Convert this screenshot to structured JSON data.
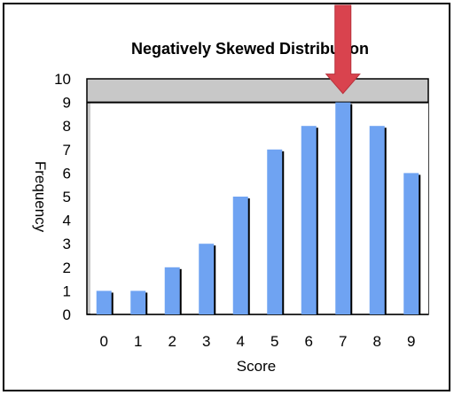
{
  "chart_data": {
    "type": "bar",
    "title": "Negatively Skewed Distribution",
    "xlabel": "Score",
    "ylabel": "Frequency",
    "categories": [
      "0",
      "1",
      "2",
      "3",
      "4",
      "5",
      "6",
      "7",
      "8",
      "9"
    ],
    "series": [
      {
        "values": [
          1,
          1,
          2,
          3,
          5,
          7,
          8,
          9,
          8,
          6
        ]
      }
    ],
    "ylim": [
      0,
      10
    ],
    "yticks": [
      0,
      1,
      2,
      3,
      4,
      5,
      6,
      7,
      8,
      9,
      10
    ],
    "grid": false,
    "legend": "none",
    "annotation": {
      "type": "arrow",
      "target_category": "7",
      "target_value": 9
    },
    "colors": {
      "bar": "#6fa3f2",
      "bar_shadow": "#000000",
      "plot_band": "#c8c8c8",
      "arrow": "#d9434e",
      "arrow_edge": "#b8323c"
    }
  }
}
